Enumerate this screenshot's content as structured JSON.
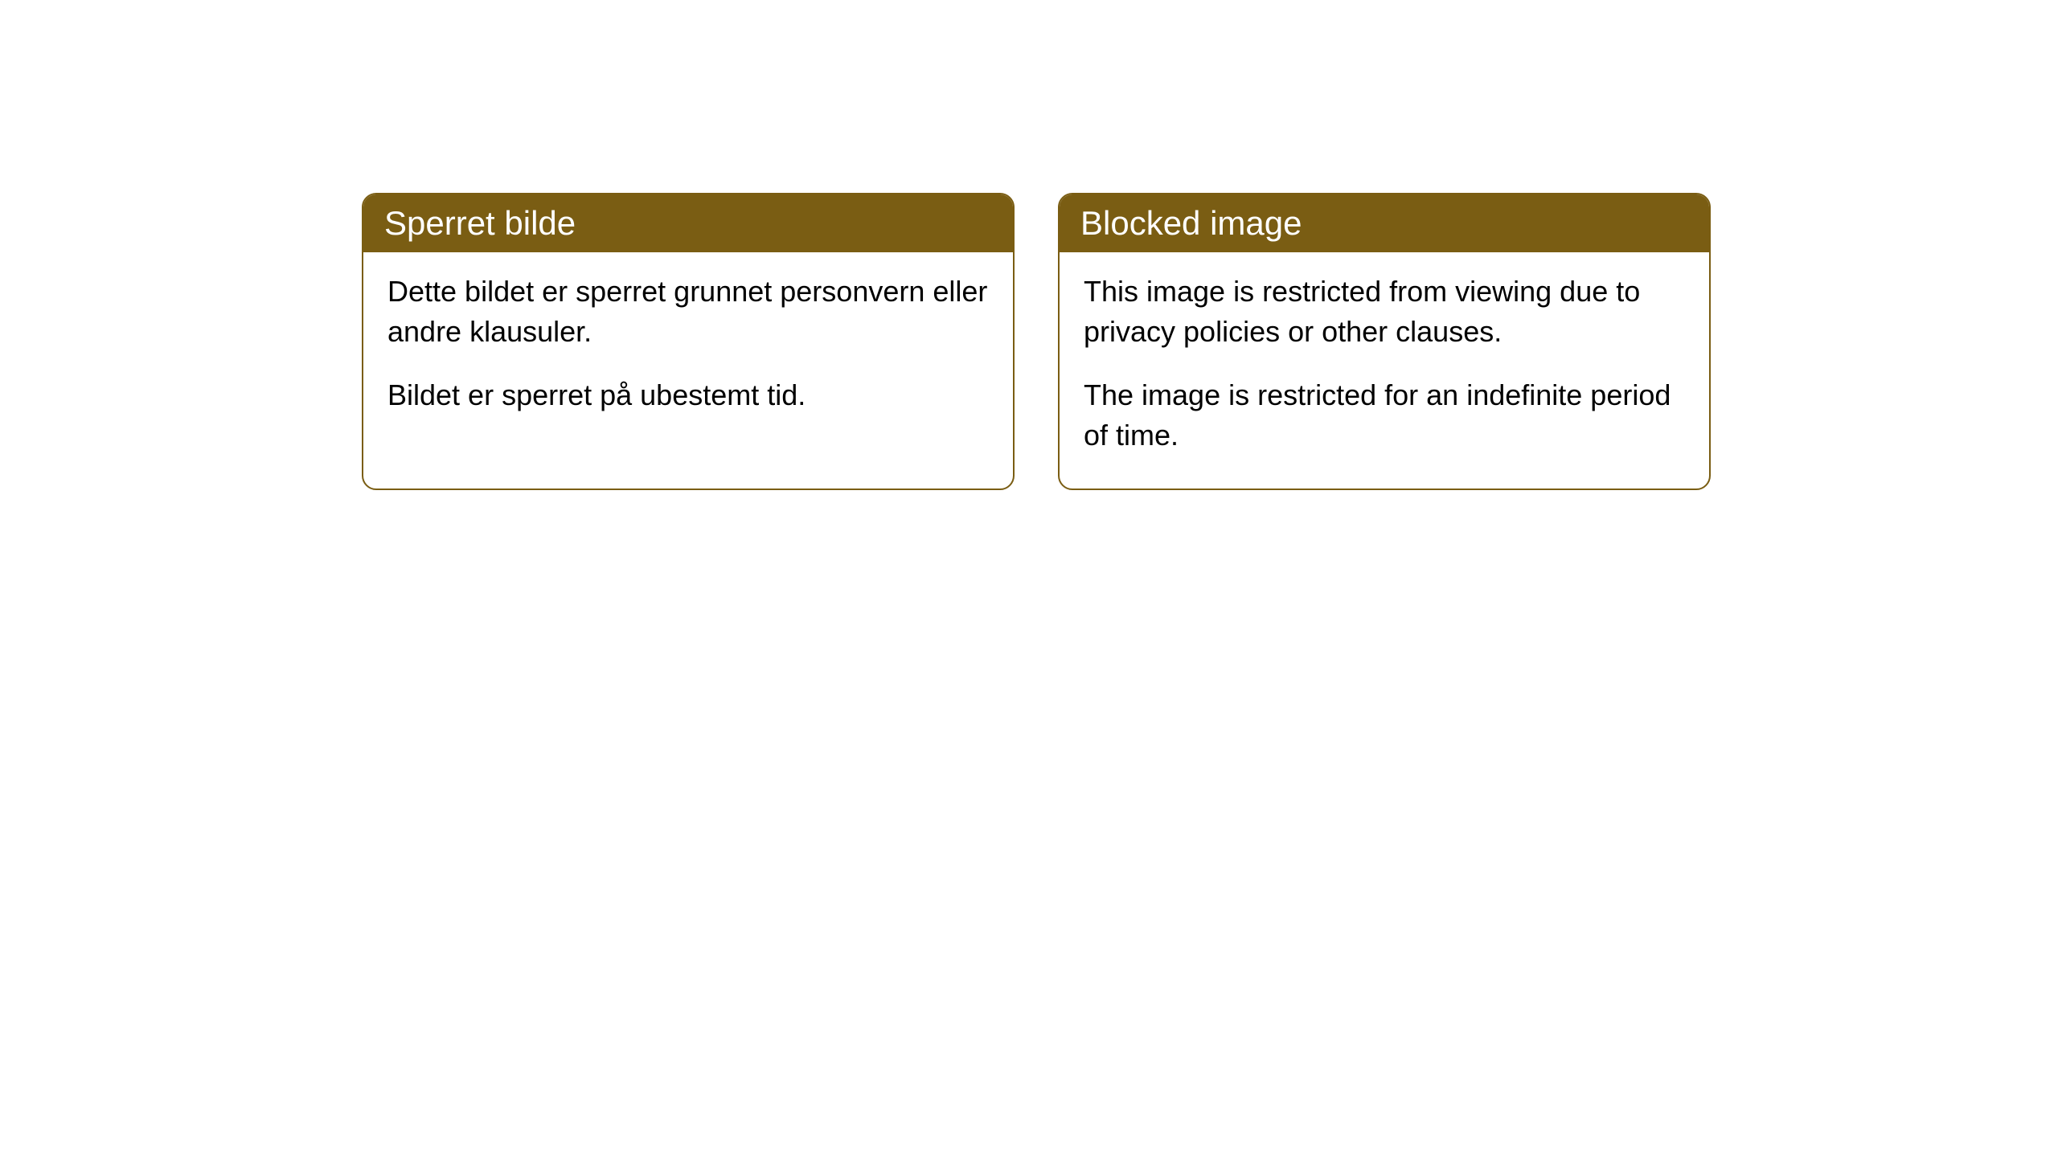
{
  "cards": [
    {
      "title": "Sperret bilde",
      "paragraph1": "Dette bildet er sperret grunnet personvern eller andre klausuler.",
      "paragraph2": "Bildet er sperret på ubestemt tid."
    },
    {
      "title": "Blocked image",
      "paragraph1": "This image is restricted from viewing due to privacy policies or other clauses.",
      "paragraph2": "The image is restricted for an indefinite period of time."
    }
  ],
  "styling": {
    "header_background": "#7a5d13",
    "header_text_color": "#ffffff",
    "border_color": "#7a5d13",
    "body_background": "#ffffff",
    "body_text_color": "#000000",
    "border_radius": "18px",
    "title_fontsize": 42,
    "body_fontsize": 36
  }
}
